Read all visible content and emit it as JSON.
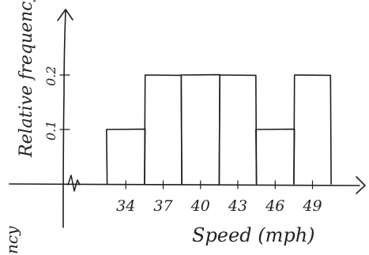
{
  "chart_data": {
    "type": "bar",
    "xlabel": "Speed (mph)",
    "ylabel": "Relative frequency",
    "x_ticks": [
      "34",
      "37",
      "40",
      "43",
      "46",
      "49"
    ],
    "y_ticks": [
      "0.1",
      "0.2"
    ],
    "bins": [
      {
        "from": 32.5,
        "to": 35.5,
        "value": 0.1
      },
      {
        "from": 35.5,
        "to": 38.5,
        "value": 0.2
      },
      {
        "from": 38.5,
        "to": 41.5,
        "value": 0.2
      },
      {
        "from": 41.5,
        "to": 44.5,
        "value": 0.2
      },
      {
        "from": 44.5,
        "to": 47.5,
        "value": 0.1
      },
      {
        "from": 47.5,
        "to": 50.5,
        "value": 0.2
      }
    ],
    "xlim": [
      30,
      52
    ],
    "ylim": [
      0,
      0.25
    ],
    "grid": false,
    "style": {
      "ink": "#1f1f1f",
      "paper": "#ffffff"
    }
  },
  "margin_text": "ncy"
}
